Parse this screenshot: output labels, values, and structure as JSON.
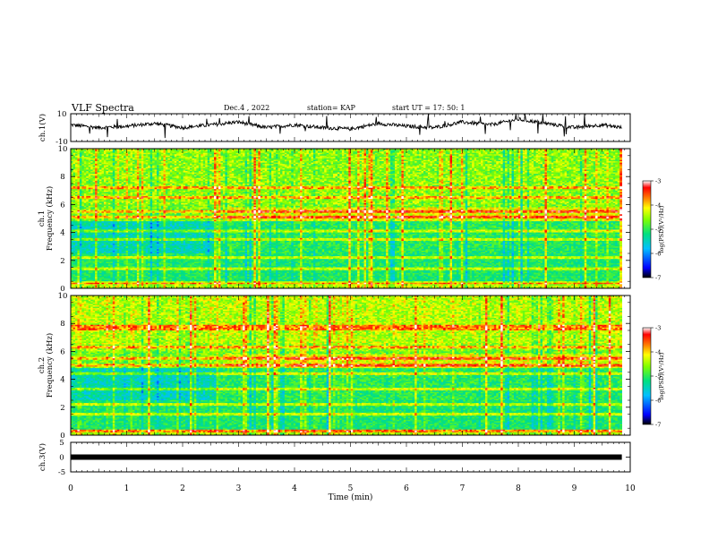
{
  "header": {
    "title": "VLF Spectra",
    "date": "Dec.4 , 2022",
    "station": "station= KAP",
    "start": "start UT =  17: 50: 1"
  },
  "colorbar": {
    "label": "log(PSD)(V²/Hz)",
    "ticks": [
      "-3",
      "-4",
      "-5",
      "-6",
      "-7"
    ],
    "range": [
      -7,
      -3
    ],
    "colors": [
      "#000000",
      "#0000ff",
      "#00c0ff",
      "#00e080",
      "#80ff00",
      "#ffff00",
      "#ff8000",
      "#ff0000",
      "#ffffff"
    ]
  },
  "chart_data": [
    {
      "type": "line",
      "panel": "ch1-waveform",
      "ylabel": "ch.1(V)",
      "ylim": [
        -10,
        10
      ],
      "ytick_labels": [
        "10",
        "-10"
      ],
      "x": [
        0,
        0.5,
        1,
        1.5,
        2,
        2.5,
        3,
        3.5,
        4,
        4.5,
        5,
        5.5,
        6,
        6.5,
        7,
        7.5,
        8,
        8.5,
        9,
        9.5,
        9.85
      ],
      "y": [
        2,
        0,
        1,
        3,
        0,
        2,
        4,
        0,
        2,
        0,
        -1,
        3,
        1,
        0,
        4,
        2,
        6,
        3,
        0,
        2,
        0
      ]
    },
    {
      "type": "heatmap",
      "panel": "ch1-spectrogram",
      "ylabel_top": "ch.1",
      "ylabel": "Frequency (kHz)",
      "ylim": [
        0,
        10
      ],
      "ytick_labels": [
        "0",
        "2",
        "4",
        "6",
        "8",
        "10"
      ],
      "xlim": [
        0,
        10
      ],
      "data_extent_min": 9.85,
      "colorbar_label": "log(PSD)(V²/Hz)"
    },
    {
      "type": "heatmap",
      "panel": "ch2-spectrogram",
      "ylabel_top": "ch.2",
      "ylabel": "Frequency (kHz)",
      "ylim": [
        0,
        10
      ],
      "ytick_labels": [
        "0",
        "2",
        "4",
        "6",
        "8",
        "10"
      ],
      "xlim": [
        0,
        10
      ],
      "data_extent_min": 9.85,
      "colorbar_label": "log(PSD)(V²/Hz)"
    },
    {
      "type": "line",
      "panel": "ch3-waveform",
      "ylabel": "ch.3(V)",
      "ylim": [
        -5,
        5
      ],
      "ytick_labels": [
        "5",
        "0",
        "-5"
      ],
      "x": [
        0,
        9.85
      ],
      "y": [
        0,
        0
      ]
    }
  ],
  "xaxis": {
    "label": "Time (min)",
    "tick_labels": [
      "0",
      "1",
      "2",
      "3",
      "4",
      "5",
      "6",
      "7",
      "8",
      "9",
      "10"
    ],
    "range": [
      0,
      10
    ]
  }
}
